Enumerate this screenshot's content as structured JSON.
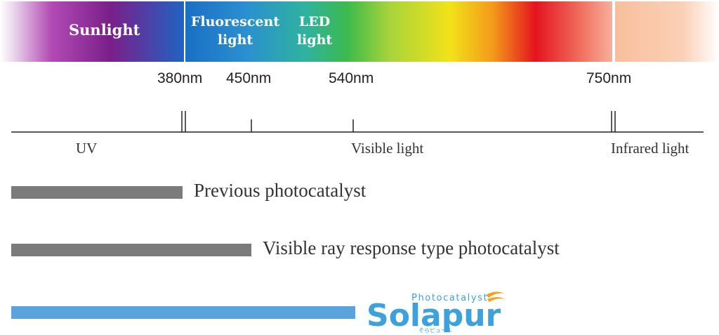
{
  "spectrum": {
    "sunlight": "Sunlight",
    "fluorescent": [
      "Fluorescent",
      "light"
    ],
    "led": [
      "LED",
      "light"
    ]
  },
  "wavelengths": [
    "380nm",
    "450nm",
    "540nm",
    "750nm"
  ],
  "regions": {
    "uv": "UV",
    "visible": "Visible light",
    "infrared": "Infrared light"
  },
  "bars": [
    {
      "label": "Previous photocatalyst",
      "color": "#7b7b7b"
    },
    {
      "label": "Visible ray response type photocatalyst",
      "color": "#7b7b7b"
    },
    {
      "label": "",
      "color": "#5aa3dc"
    }
  ],
  "logo": {
    "brand": "Solapur",
    "tagline": "Photocatalyst",
    "kana": "そらピュール",
    "blue": "#3da2dc",
    "accent": "#f2a21f"
  }
}
